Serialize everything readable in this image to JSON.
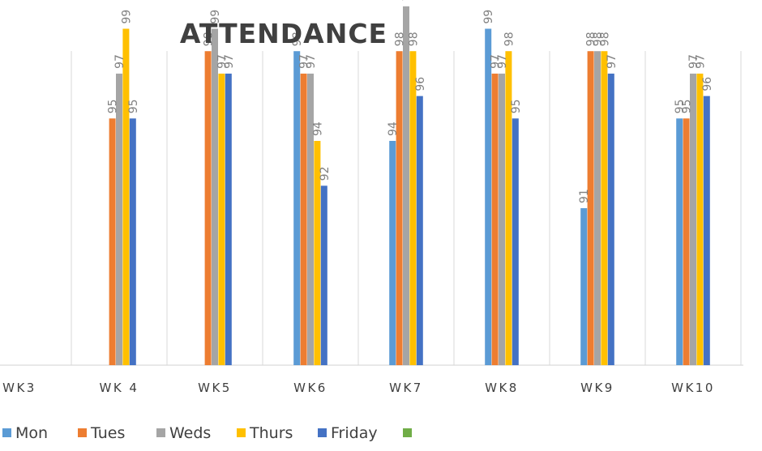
{
  "chart_data": {
    "type": "bar",
    "title": "ATTENDANCE",
    "xlabel": "",
    "ylabel": "",
    "ylim": [
      84,
      100
    ],
    "grid": "vertical",
    "legend": "bottom",
    "categories": [
      "WK3",
      "WK 4",
      "WK5",
      "WK6",
      "WK7",
      "WK8",
      "WK9",
      "WK10"
    ],
    "series": [
      {
        "name": "Mon",
        "color": "#5b9bd5",
        "values": [
          null,
          null,
          null,
          98,
          94,
          99,
          91,
          95
        ]
      },
      {
        "name": "Tues",
        "color": "#ed7d31",
        "values": [
          null,
          95,
          98,
          97,
          98,
          97,
          98,
          95
        ]
      },
      {
        "name": "Weds",
        "color": "#a5a5a5",
        "values": [
          null,
          97,
          99,
          97,
          100,
          97,
          98,
          97
        ]
      },
      {
        "name": "Thurs",
        "color": "#ffc000",
        "values": [
          null,
          99,
          97,
          94,
          98,
          98,
          98,
          97
        ]
      },
      {
        "name": "Friday",
        "color": "#4472c4",
        "values": [
          null,
          95,
          97,
          92,
          96,
          95,
          97,
          96
        ]
      },
      {
        "name": "",
        "color": "#70ad47",
        "values": [
          null,
          null,
          null,
          null,
          null,
          null,
          null,
          null
        ]
      }
    ]
  }
}
